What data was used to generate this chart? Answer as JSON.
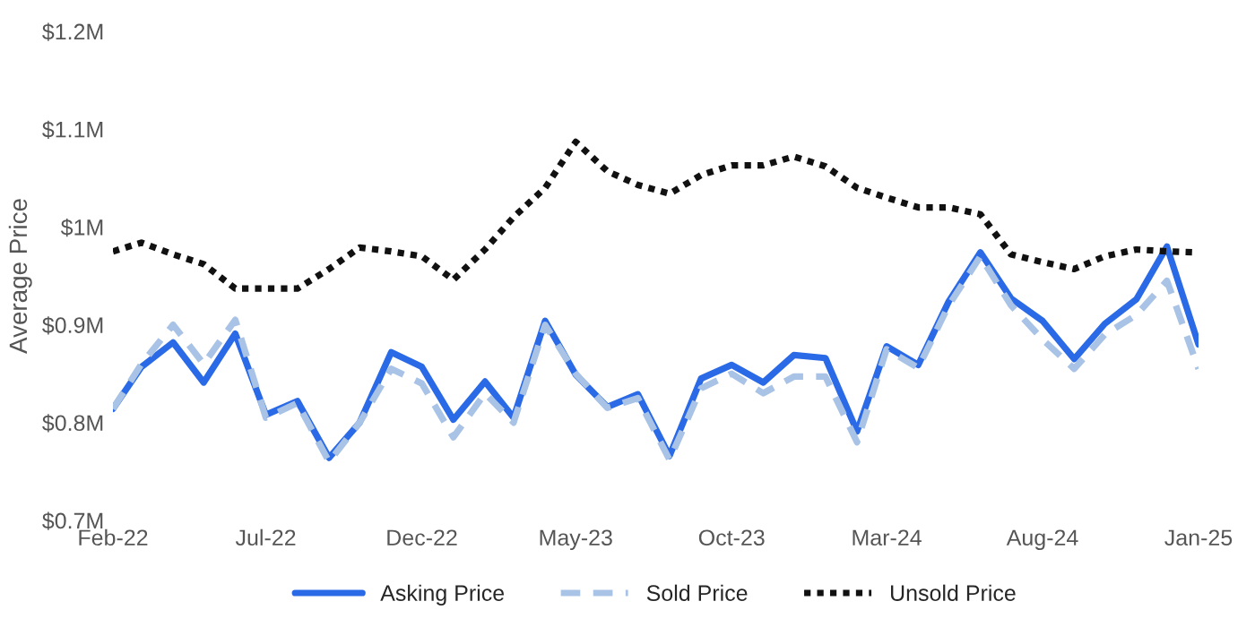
{
  "chart_data": {
    "type": "line",
    "ylabel": "Average Price",
    "x": [
      "2022-02",
      "2022-03",
      "2022-04",
      "2022-05",
      "2022-06",
      "2022-07",
      "2022-08",
      "2022-09",
      "2022-10",
      "2022-11",
      "2022-12",
      "2023-01",
      "2023-02",
      "2023-03",
      "2023-04",
      "2023-05",
      "2023-06",
      "2023-07",
      "2023-08",
      "2023-09",
      "2023-10",
      "2023-11",
      "2023-12",
      "2024-01",
      "2024-02",
      "2024-03",
      "2024-04",
      "2024-05",
      "2024-06",
      "2024-07",
      "2024-08",
      "2024-09",
      "2024-10",
      "2024-11",
      "2024-12",
      "2025-01"
    ],
    "series": [
      {
        "name": "Asking Price",
        "color": "#2a6ae6",
        "line_style": "solid",
        "values": [
          0.814,
          0.857,
          0.882,
          0.841,
          0.891,
          0.808,
          0.822,
          0.764,
          0.8,
          0.872,
          0.857,
          0.803,
          0.842,
          0.805,
          0.904,
          0.849,
          0.816,
          0.829,
          0.766,
          0.845,
          0.859,
          0.841,
          0.869,
          0.866,
          0.791,
          0.878,
          0.859,
          0.924,
          0.974,
          0.927,
          0.904,
          0.865,
          0.901,
          0.926,
          0.98,
          0.88
        ]
      },
      {
        "name": "Sold Price",
        "color": "#a9c3e6",
        "line_style": "dashed",
        "values": [
          0.814,
          0.86,
          0.9,
          0.86,
          0.905,
          0.805,
          0.82,
          0.76,
          0.8,
          0.855,
          0.84,
          0.785,
          0.83,
          0.8,
          0.9,
          0.85,
          0.815,
          0.825,
          0.762,
          0.835,
          0.85,
          0.83,
          0.847,
          0.847,
          0.78,
          0.875,
          0.856,
          0.92,
          0.97,
          0.92,
          0.885,
          0.855,
          0.89,
          0.91,
          0.945,
          0.855
        ]
      },
      {
        "name": "Unsold Price",
        "color": "#111111",
        "line_style": "dotted",
        "values": [
          0.975,
          0.984,
          0.972,
          0.962,
          0.937,
          0.937,
          0.937,
          0.957,
          0.979,
          0.975,
          0.97,
          0.946,
          0.977,
          1.01,
          1.04,
          1.087,
          1.057,
          1.043,
          1.034,
          1.053,
          1.063,
          1.063,
          1.072,
          1.062,
          1.04,
          1.03,
          1.02,
          1.02,
          1.013,
          0.972,
          0.964,
          0.957,
          0.97,
          0.977,
          0.975,
          0.974
        ]
      }
    ],
    "xlim": [
      "2022-02",
      "2025-01"
    ],
    "xticks": [
      {
        "value": "2022-02",
        "label": "Feb-22"
      },
      {
        "value": "2022-07",
        "label": "Jul-22"
      },
      {
        "value": "2022-12",
        "label": "Dec-22"
      },
      {
        "value": "2023-05",
        "label": "May-23"
      },
      {
        "value": "2023-10",
        "label": "Oct-23"
      },
      {
        "value": "2024-03",
        "label": "Mar-24"
      },
      {
        "value": "2024-08",
        "label": "Aug-24"
      },
      {
        "value": "2025-01",
        "label": "Jan-25"
      }
    ],
    "ylim": [
      0.7,
      1.2
    ],
    "yticks": [
      {
        "value": 0.7,
        "label": "$0.7M"
      },
      {
        "value": 0.8,
        "label": "$0.8M"
      },
      {
        "value": 0.9,
        "label": "$0.9M"
      },
      {
        "value": 1.0,
        "label": "$1M"
      },
      {
        "value": 1.1,
        "label": "$1.1M"
      },
      {
        "value": 1.2,
        "label": "$1.2M"
      }
    ],
    "grid": false,
    "legend": "bottom",
    "marker": "none"
  }
}
